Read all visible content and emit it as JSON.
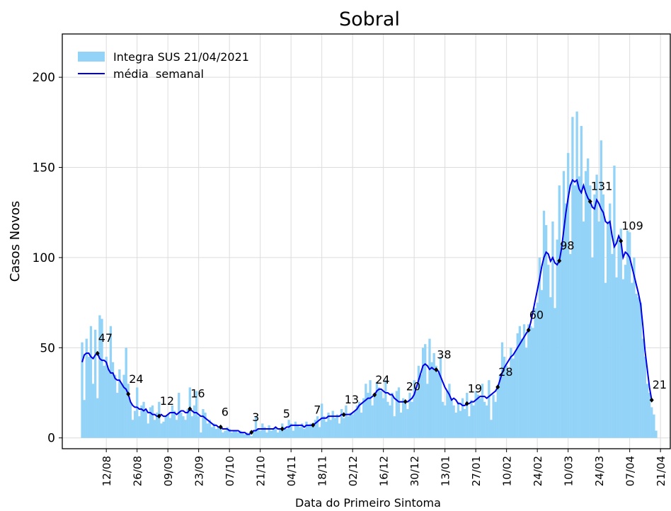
{
  "chart_data": {
    "type": "bar-line",
    "title": "Sobral",
    "xlabel": "Data do Primeiro Sintoma",
    "ylabel": "Casos Novos",
    "ylim": [
      -6,
      224
    ],
    "yticks": [
      0,
      50,
      100,
      150,
      200
    ],
    "grid": true,
    "legend": "upper left",
    "categories": [
      null,
      null,
      null,
      null,
      null,
      null,
      null,
      null,
      null,
      null,
      null,
      "12/08",
      null,
      null,
      null,
      null,
      null,
      null,
      null,
      null,
      null,
      null,
      null,
      null,
      null,
      "26/08",
      null,
      null,
      null,
      null,
      null,
      null,
      null,
      null,
      null,
      null,
      null,
      null,
      null,
      "09/09",
      null,
      null,
      null,
      null,
      null,
      null,
      null,
      null,
      null,
      null,
      null,
      null,
      null,
      "23/09",
      null,
      null,
      null,
      null,
      null,
      null,
      null,
      null,
      null,
      null,
      null,
      null,
      null,
      "07/10",
      null,
      null,
      null,
      null,
      null,
      null,
      null,
      null,
      null,
      null,
      null,
      null,
      null,
      "21/10",
      null,
      null,
      null,
      null,
      null,
      null,
      null,
      null,
      null,
      null,
      null,
      null,
      null,
      "04/11",
      null,
      null,
      null,
      null,
      null,
      null,
      null,
      null,
      null,
      null,
      null,
      null,
      null,
      "18/11",
      null,
      null,
      null,
      null,
      null,
      null,
      null,
      null,
      null,
      null,
      null,
      null,
      null,
      "02/12",
      null,
      null,
      null,
      null,
      null,
      null,
      null,
      null,
      null,
      null,
      null,
      null,
      null,
      "16/12",
      null,
      null,
      null,
      null,
      null,
      null,
      null,
      null,
      null,
      null,
      null,
      null,
      null,
      "30/12",
      null,
      null,
      null,
      null,
      null,
      null,
      null,
      null,
      null,
      null,
      null,
      null,
      null,
      "13/01",
      null,
      null,
      null,
      null,
      null,
      null,
      null,
      null,
      null,
      null,
      null,
      null,
      null,
      "27/01",
      null,
      null,
      null,
      null,
      null,
      null,
      null,
      null,
      null,
      null,
      null,
      null,
      null,
      "10/02",
      null,
      null,
      null,
      null,
      null,
      null,
      null,
      null,
      null,
      null,
      null,
      null,
      null,
      "24/02",
      null,
      null,
      null,
      null,
      null,
      null,
      null,
      null,
      null,
      null,
      null,
      null,
      null,
      "10/03",
      null,
      null,
      null,
      null,
      null,
      null,
      null,
      null,
      null,
      null,
      null,
      null,
      null,
      "24/03",
      null,
      null,
      null,
      null,
      null,
      null,
      null,
      null,
      null,
      null,
      null,
      null,
      null,
      "07/04",
      null,
      null,
      null,
      null,
      null,
      null,
      null,
      null,
      null,
      null,
      null,
      null,
      null,
      "21/04"
    ],
    "series": [
      {
        "name": "Integra SUS 21/04/2021",
        "type": "bar",
        "color": "#92d3f7",
        "values": [
          53,
          21,
          55,
          45,
          62,
          30,
          60,
          22,
          68,
          66,
          40,
          45,
          38,
          62,
          42,
          35,
          25,
          38,
          30,
          35,
          50,
          30,
          20,
          10,
          15,
          28,
          12,
          18,
          20,
          15,
          8,
          17,
          18,
          10,
          14,
          20,
          8,
          9,
          12,
          13,
          11,
          18,
          15,
          10,
          25,
          14,
          12,
          10,
          16,
          28,
          12,
          18,
          26,
          12,
          3,
          16,
          14,
          8,
          10,
          6,
          8,
          5,
          6,
          7,
          3,
          4,
          6,
          5,
          3,
          4,
          4,
          3,
          4,
          3,
          2,
          3,
          2,
          1,
          4,
          12,
          5,
          4,
          8,
          6,
          3,
          7,
          4,
          5,
          6,
          3,
          5,
          8,
          6,
          5,
          10,
          8,
          4,
          9,
          7,
          6,
          8,
          5,
          9,
          7,
          8,
          7,
          10,
          12,
          6,
          19,
          12,
          9,
          14,
          10,
          15,
          11,
          13,
          8,
          16,
          11,
          18,
          12,
          14,
          13,
          15,
          18,
          20,
          14,
          22,
          30,
          25,
          32,
          18,
          24,
          31,
          28,
          26,
          22,
          32,
          20,
          18,
          25,
          12,
          26,
          28,
          14,
          22,
          19,
          16,
          25,
          20,
          32,
          26,
          40,
          35,
          50,
          52,
          30,
          55,
          42,
          47,
          40,
          36,
          45,
          20,
          18,
          26,
          30,
          22,
          18,
          14,
          20,
          15,
          22,
          16,
          25,
          12,
          21,
          18,
          26,
          24,
          22,
          30,
          20,
          18,
          32,
          10,
          24,
          20,
          28,
          35,
          53,
          45,
          40,
          38,
          50,
          44,
          48,
          58,
          62,
          55,
          63,
          50,
          63,
          62,
          61,
          72,
          75,
          100,
          82,
          126,
          118,
          96,
          78,
          120,
          72,
          110,
          140,
          108,
          148,
          130,
          158,
          102,
          178,
          140,
          181,
          145,
          173,
          120,
          148,
          155,
          140,
          100,
          135,
          146,
          120,
          165,
          135,
          86,
          120,
          130,
          102,
          151,
          89,
          110,
          116,
          88,
          96,
          115,
          114,
          86,
          100,
          80,
          78,
          75,
          55,
          45,
          30,
          25,
          17,
          13,
          4,
          null,
          null
        ]
      },
      {
        "name": "média  semanal",
        "type": "line",
        "color": "#0000e6",
        "values": [
          42,
          46,
          47,
          47,
          45,
          44,
          46,
          46.9,
          44,
          43,
          43,
          42,
          38,
          36,
          36,
          33,
          32,
          32,
          30,
          28,
          27,
          24.3,
          20,
          18,
          17,
          17,
          16,
          16,
          15,
          16,
          14,
          14,
          13,
          13,
          12,
          12.1,
          13,
          12,
          12,
          13,
          14,
          14,
          14,
          13,
          14,
          15,
          15,
          14,
          14,
          16.1,
          15,
          14,
          14,
          13,
          12,
          12,
          11,
          10,
          9,
          8,
          7,
          7,
          6,
          6.0,
          5,
          5,
          5,
          4,
          4,
          4,
          4,
          4,
          3,
          3,
          3,
          2,
          2,
          3.1,
          4,
          4,
          5,
          5,
          5,
          5,
          5,
          5,
          5,
          5,
          6,
          5,
          5,
          5.0,
          5,
          6,
          6,
          7,
          7,
          7,
          7,
          7,
          7,
          6,
          7,
          7,
          7,
          7.1,
          8,
          9,
          10,
          11,
          11,
          11,
          12,
          12,
          12,
          12,
          12,
          12,
          13,
          12.9,
          13,
          13,
          13,
          14,
          15,
          16,
          18,
          19,
          20,
          21,
          22,
          22,
          23,
          23.9,
          26,
          27,
          27,
          26,
          25,
          25,
          24,
          24,
          22,
          21,
          20,
          20,
          20,
          20.1,
          20,
          21,
          22,
          24,
          28,
          32,
          36,
          40,
          41,
          40,
          38,
          39,
          38,
          37.8,
          37,
          34,
          31,
          28,
          26,
          24,
          21,
          22,
          21,
          19,
          19,
          18,
          18,
          19.0,
          19,
          20,
          20,
          21,
          22,
          23,
          23,
          23,
          22,
          23,
          24,
          25,
          26,
          28.2,
          32,
          36,
          39,
          41,
          43,
          45,
          46,
          48,
          50,
          52,
          54,
          56,
          58,
          59.8,
          64,
          70,
          76,
          82,
          88,
          95,
          100,
          103,
          102,
          98,
          100,
          97,
          96,
          98.2,
          105,
          115,
          125,
          133,
          140,
          143,
          142,
          143,
          138,
          136,
          140,
          136,
          133,
          131.1,
          128,
          127,
          132,
          130,
          127,
          125,
          120,
          119,
          120,
          112,
          106,
          108,
          112,
          109.2,
          100,
          103,
          102,
          100,
          95,
          90,
          85,
          80,
          74,
          62,
          48,
          38,
          28,
          21.0,
          null,
          null,
          null,
          null
        ],
        "value_labels": [
          null,
          null,
          null,
          null,
          null,
          null,
          null,
          "47",
          null,
          null,
          null,
          null,
          null,
          null,
          null,
          null,
          null,
          null,
          null,
          null,
          null,
          "24",
          null,
          null,
          null,
          null,
          null,
          null,
          null,
          null,
          null,
          null,
          null,
          null,
          null,
          "12",
          null,
          null,
          null,
          null,
          null,
          null,
          null,
          null,
          null,
          null,
          null,
          null,
          null,
          "16",
          null,
          null,
          null,
          null,
          null,
          null,
          null,
          null,
          null,
          null,
          null,
          null,
          null,
          "6",
          null,
          null,
          null,
          null,
          null,
          null,
          null,
          null,
          null,
          null,
          null,
          null,
          null,
          "3",
          null,
          null,
          null,
          null,
          null,
          null,
          null,
          null,
          null,
          null,
          null,
          null,
          null,
          "5",
          null,
          null,
          null,
          null,
          null,
          null,
          null,
          null,
          null,
          null,
          null,
          null,
          null,
          "7",
          null,
          null,
          null,
          null,
          null,
          null,
          null,
          null,
          null,
          null,
          null,
          null,
          null,
          "13",
          null,
          null,
          null,
          null,
          null,
          null,
          null,
          null,
          null,
          null,
          null,
          null,
          null,
          "24",
          null,
          null,
          null,
          null,
          null,
          null,
          null,
          null,
          null,
          null,
          null,
          null,
          null,
          "20",
          null,
          null,
          null,
          null,
          null,
          null,
          null,
          null,
          null,
          null,
          null,
          null,
          null,
          "38",
          null,
          null,
          null,
          null,
          null,
          null,
          null,
          null,
          null,
          null,
          null,
          null,
          null,
          "19",
          null,
          null,
          null,
          null,
          null,
          null,
          null,
          null,
          null,
          null,
          null,
          null,
          null,
          "28",
          null,
          null,
          null,
          null,
          null,
          null,
          null,
          null,
          null,
          null,
          null,
          null,
          null,
          "60",
          null,
          null,
          null,
          null,
          null,
          null,
          null,
          null,
          null,
          null,
          null,
          null,
          null,
          "98",
          null,
          null,
          null,
          null,
          null,
          null,
          null,
          null,
          null,
          null,
          null,
          null,
          null,
          "131",
          null,
          null,
          null,
          null,
          null,
          null,
          null,
          null,
          null,
          null,
          null,
          null,
          null,
          "109",
          null,
          null,
          null,
          null,
          null,
          null,
          null,
          null,
          null,
          null,
          null,
          null,
          null,
          "21",
          null,
          null,
          null,
          null
        ]
      }
    ]
  }
}
